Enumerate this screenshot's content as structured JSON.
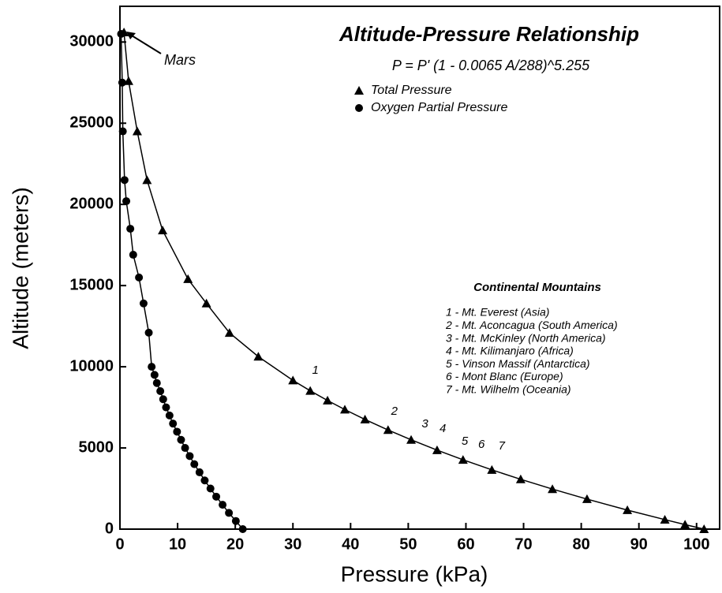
{
  "chart_data": {
    "type": "scatter",
    "title": "Altitude-Pressure Relationship",
    "subtitle": "P = P' (1 - 0.0065 A/288)^5.255",
    "x_label": "Pressure (kPa)",
    "y_label": "Altitude (meters)",
    "xlim": [
      0,
      104
    ],
    "ylim": [
      0,
      32200
    ],
    "xticks": [
      0,
      10,
      20,
      30,
      40,
      50,
      60,
      70,
      80,
      90,
      100
    ],
    "yticks": [
      0,
      5000,
      10000,
      15000,
      20000,
      25000,
      30000
    ],
    "series": [
      {
        "name": "Total Pressure",
        "marker": "triangle",
        "color": "#000000",
        "x": [
          101.3,
          98,
          94.5,
          88,
          81,
          75,
          69.5,
          64.5,
          59.5,
          55,
          50.5,
          46.5,
          42.5,
          39,
          36,
          33,
          30,
          24,
          19,
          15,
          11.8,
          7.4,
          4.7,
          3,
          1.5,
          0.7
        ],
        "values": [
          0,
          280,
          585,
          1173,
          1849,
          2467,
          3069,
          3650,
          4270,
          4865,
          5501,
          6106,
          6754,
          7364,
          7922,
          8520,
          9164,
          10624,
          12090,
          13900,
          15400,
          18400,
          21500,
          24500,
          27600,
          30600
        ]
      },
      {
        "name": "Oxygen Partial Pressure",
        "marker": "circle",
        "color": "#000000",
        "x": [
          21.3,
          20.1,
          18.9,
          17.8,
          16.7,
          15.7,
          14.7,
          13.8,
          12.9,
          12.1,
          11.3,
          10.6,
          9.9,
          9.2,
          8.6,
          8.0,
          7.5,
          7.0,
          6.4,
          6.0,
          5.5,
          5.0,
          4.1,
          3.3,
          2.3,
          1.8,
          1.1,
          0.8,
          0.5,
          0.4,
          0.2
        ],
        "values": [
          0,
          500,
          1000,
          1500,
          2000,
          2500,
          3000,
          3500,
          4000,
          4500,
          5000,
          5500,
          6000,
          6500,
          7000,
          7500,
          8000,
          8500,
          9000,
          9500,
          10000,
          12100,
          13900,
          15500,
          16900,
          18500,
          20200,
          21500,
          24500,
          27500,
          30500
        ]
      }
    ],
    "mars_label": "Mars",
    "mountains_title": "Continental Mountains",
    "mountains": [
      "1 - Mt. Everest (Asia)",
      "2 - Mt. Aconcagua (South America)",
      "3 - Mt. McKinley (North America)",
      "4 - Mt. Kilimanjaro (Africa)",
      "5 - Vinson Massif (Antarctica)",
      "6 - Mont Blanc (Europe)",
      "7 - Mt. Wilhelm (Oceania)"
    ],
    "annotations": [
      {
        "text": "1",
        "x": 33.9,
        "y": 9760
      },
      {
        "text": "2",
        "x": 47.6,
        "y": 7230
      },
      {
        "text": "3",
        "x": 52.9,
        "y": 6460
      },
      {
        "text": "4",
        "x": 56,
        "y": 6170
      },
      {
        "text": "5",
        "x": 59.8,
        "y": 5390
      },
      {
        "text": "6",
        "x": 62.7,
        "y": 5190
      },
      {
        "text": "7",
        "x": 66.2,
        "y": 5100
      }
    ]
  }
}
